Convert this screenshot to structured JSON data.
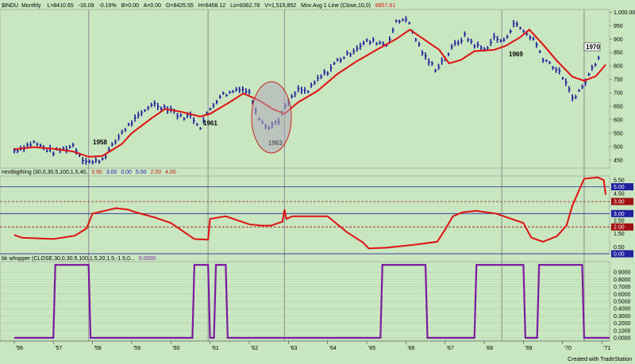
{
  "chart_title": {
    "symbol": "$INDU",
    "interval": "Monthly",
    "last": "L=8410.65",
    "change": "-16.09",
    "pct": "-0.19%",
    "bid": "B=0.00",
    "ask": "A=0.00",
    "open": "O=8425.55",
    "high": "H=8458.12",
    "low": "Lo=8362.78",
    "volume": "V=1,515,852",
    "indicator": "Mov Avg 1 Line (Close,10,0)",
    "ma_value": "8857.61"
  },
  "colors": {
    "background": "#c8e6c0",
    "bar": "#1a1a9a",
    "ma_line": "#e01010",
    "indicator_line": "#7a1aa0",
    "cycle_line": "#9a9a9a"
  },
  "chart_data": [
    {
      "type": "ohlc",
      "panel": "price",
      "x_ticks": [
        "'56",
        "'57",
        "'58",
        "'59",
        "'60",
        "'61",
        "'62",
        "'63",
        "'64",
        "'65",
        "'66",
        "'67",
        "'68",
        "'69",
        "'70",
        "'71"
      ],
      "y_ticks": [
        450,
        500,
        550,
        600,
        650,
        700,
        750,
        800,
        850,
        900,
        950,
        "1,000.00"
      ],
      "ylim": [
        420,
        1010
      ],
      "series": [
        {
          "name": "$INDU",
          "values": [
            [
              1956.0,
              485
            ],
            [
              1956.25,
              500
            ],
            [
              1956.5,
              515
            ],
            [
              1956.75,
              495
            ],
            [
              1957.0,
              480
            ],
            [
              1957.25,
              490
            ],
            [
              1957.5,
              505
            ],
            [
              1957.75,
              455
            ],
            [
              1958.0,
              440
            ],
            [
              1958.25,
              455
            ],
            [
              1958.5,
              500
            ],
            [
              1958.75,
              555
            ],
            [
              1959.0,
              590
            ],
            [
              1959.25,
              620
            ],
            [
              1959.5,
              660
            ],
            [
              1959.75,
              650
            ],
            [
              1960.0,
              640
            ],
            [
              1960.25,
              610
            ],
            [
              1960.5,
              615
            ],
            [
              1960.75,
              575
            ],
            [
              1961.0,
              640
            ],
            [
              1961.25,
              690
            ],
            [
              1961.5,
              700
            ],
            [
              1961.75,
              720
            ],
            [
              1962.0,
              700
            ],
            [
              1962.25,
              610
            ],
            [
              1962.5,
              570
            ],
            [
              1962.75,
              600
            ],
            [
              1963.0,
              665
            ],
            [
              1963.25,
              710
            ],
            [
              1963.5,
              705
            ],
            [
              1963.75,
              750
            ],
            [
              1964.0,
              780
            ],
            [
              1964.25,
              820
            ],
            [
              1964.5,
              840
            ],
            [
              1964.75,
              870
            ],
            [
              1965.0,
              890
            ],
            [
              1965.25,
              890
            ],
            [
              1965.5,
              880
            ],
            [
              1965.75,
              960
            ],
            [
              1966.0,
              980
            ],
            [
              1966.25,
              900
            ],
            [
              1966.5,
              830
            ],
            [
              1966.75,
              790
            ],
            [
              1967.0,
              830
            ],
            [
              1967.25,
              880
            ],
            [
              1967.5,
              910
            ],
            [
              1967.75,
              880
            ],
            [
              1968.0,
              860
            ],
            [
              1968.25,
              905
            ],
            [
              1968.5,
              890
            ],
            [
              1968.75,
              960
            ],
            [
              1969.0,
              930
            ],
            [
              1969.25,
              900
            ],
            [
              1969.5,
              830
            ],
            [
              1969.75,
              800
            ],
            [
              1970.0,
              760
            ],
            [
              1970.25,
              680
            ],
            [
              1970.5,
              720
            ],
            [
              1970.75,
              790
            ],
            [
              1971.0,
              860
            ]
          ]
        },
        {
          "name": "Mov Avg 1 Line (Close,10,0)",
          "values": [
            [
              1956.0,
              490
            ],
            [
              1956.5,
              498
            ],
            [
              1957.0,
              492
            ],
            [
              1957.5,
              482
            ],
            [
              1957.9,
              462
            ],
            [
              1958.25,
              465
            ],
            [
              1958.75,
              510
            ],
            [
              1959.0,
              550
            ],
            [
              1959.5,
              605
            ],
            [
              1959.85,
              640
            ],
            [
              1960.25,
              630
            ],
            [
              1960.75,
              612
            ],
            [
              1961.0,
              622
            ],
            [
              1961.5,
              665
            ],
            [
              1961.85,
              698
            ],
            [
              1962.25,
              672
            ],
            [
              1962.6,
              640
            ],
            [
              1962.9,
              622
            ],
            [
              1963.25,
              665
            ],
            [
              1963.75,
              708
            ],
            [
              1964.25,
              770
            ],
            [
              1964.75,
              818
            ],
            [
              1965.25,
              860
            ],
            [
              1965.75,
              900
            ],
            [
              1966.1,
              935
            ],
            [
              1966.5,
              895
            ],
            [
              1966.85,
              860
            ],
            [
              1967.1,
              810
            ],
            [
              1967.4,
              822
            ],
            [
              1967.75,
              855
            ],
            [
              1968.25,
              860
            ],
            [
              1968.55,
              875
            ],
            [
              1968.9,
              905
            ],
            [
              1969.15,
              935
            ],
            [
              1969.5,
              880
            ],
            [
              1969.85,
              820
            ],
            [
              1970.25,
              760
            ],
            [
              1970.55,
              745
            ],
            [
              1970.85,
              762
            ],
            [
              1971.1,
              805
            ]
          ]
        }
      ],
      "annotations": [
        "1958",
        "1961",
        "1963",
        "1969",
        "1970"
      ]
    },
    {
      "type": "line",
      "panel": "nextbigthing",
      "label": "nextbigthing (30,0,30,5,100,1.5,40,",
      "label_values": [
        "3.90",
        "3.00",
        "0.00",
        "5.00",
        "2.00",
        "4.00"
      ],
      "y_ticks": [
        0.0,
        0.5,
        1.5,
        2.0,
        2.5,
        3.0,
        3.9,
        4.5,
        5.0,
        5.5
      ],
      "ylim": [
        0,
        5.8
      ],
      "markers": [
        "5.00",
        "3.90",
        "3.00",
        "2.00",
        "0.00"
      ],
      "series": [
        {
          "name": "nextbigthing",
          "values": [
            [
              1956.0,
              1.4
            ],
            [
              1956.2,
              1.2
            ],
            [
              1957.0,
              1.1
            ],
            [
              1957.55,
              1.35
            ],
            [
              1957.85,
              1.9
            ],
            [
              1958.0,
              3.0
            ],
            [
              1958.3,
              3.2
            ],
            [
              1958.6,
              3.4
            ],
            [
              1958.9,
              3.3
            ],
            [
              1959.1,
              3.1
            ],
            [
              1959.6,
              2.7
            ],
            [
              1960.0,
              2.3
            ],
            [
              1960.35,
              1.6
            ],
            [
              1960.6,
              1.1
            ],
            [
              1960.95,
              1.05
            ],
            [
              1961.0,
              2.6
            ],
            [
              1961.4,
              2.8
            ],
            [
              1961.7,
              2.5
            ],
            [
              1962.0,
              2.2
            ],
            [
              1962.3,
              2.1
            ],
            [
              1962.55,
              2.1
            ],
            [
              1962.85,
              2.4
            ],
            [
              1962.9,
              3.3
            ],
            [
              1962.95,
              2.6
            ],
            [
              1963.1,
              2.8
            ],
            [
              1964.0,
              2.8
            ],
            [
              1964.5,
              1.6
            ],
            [
              1964.9,
              0.85
            ],
            [
              1965.05,
              0.4
            ],
            [
              1965.5,
              0.45
            ],
            [
              1966.3,
              0.7
            ],
            [
              1966.8,
              0.9
            ],
            [
              1967.0,
              1.8
            ],
            [
              1967.2,
              2.8
            ],
            [
              1967.45,
              3.1
            ],
            [
              1967.8,
              3.2
            ],
            [
              1968.3,
              3.0
            ],
            [
              1968.8,
              2.5
            ],
            [
              1969.0,
              2.3
            ],
            [
              1969.2,
              1.2
            ],
            [
              1969.5,
              0.9
            ],
            [
              1969.85,
              1.3
            ],
            [
              1970.1,
              2.1
            ],
            [
              1970.25,
              3.6
            ],
            [
              1970.55,
              5.6
            ],
            [
              1970.9,
              5.7
            ],
            [
              1971.05,
              5.5
            ],
            [
              1971.1,
              4.4
            ]
          ]
        }
      ]
    },
    {
      "type": "line",
      "panel": "whopper",
      "label": "bk whopper (CLOSE,30,0,30,5,100,1.5,20,1.5,-1.5,0...",
      "label_value": "0.0000",
      "y_ticks": [
        "0.0000",
        "0.1000",
        "0.2000",
        "0.3000",
        "0.4000",
        "0.5000",
        "0.6000",
        "0.7000",
        "0.8000",
        "0.9000"
      ],
      "ylim": [
        0,
        1.0
      ],
      "series": [
        {
          "name": "bk whopper",
          "values": [
            [
              1956.0,
              0
            ],
            [
              1957.0,
              0
            ],
            [
              1957.05,
              1
            ],
            [
              1957.9,
              1
            ],
            [
              1957.95,
              0
            ],
            [
              1960.55,
              0
            ],
            [
              1960.6,
              1
            ],
            [
              1960.95,
              1
            ],
            [
              1961.0,
              0
            ],
            [
              1961.1,
              0
            ],
            [
              1961.15,
              1
            ],
            [
              1961.4,
              1
            ],
            [
              1961.45,
              0
            ],
            [
              1965.35,
              0
            ],
            [
              1965.4,
              1
            ],
            [
              1966.5,
              1
            ],
            [
              1966.55,
              0
            ],
            [
              1967.75,
              0
            ],
            [
              1967.8,
              1
            ],
            [
              1969.0,
              1
            ],
            [
              1969.05,
              0
            ],
            [
              1969.35,
              0
            ],
            [
              1969.4,
              1
            ],
            [
              1970.5,
              1
            ],
            [
              1970.55,
              0
            ],
            [
              1971.2,
              0
            ]
          ]
        }
      ]
    }
  ],
  "cycle_lines": [
    1957.9,
    1960.95,
    1962.9,
    1968.45,
    1970.55
  ],
  "credit": "Created with TradeStation"
}
